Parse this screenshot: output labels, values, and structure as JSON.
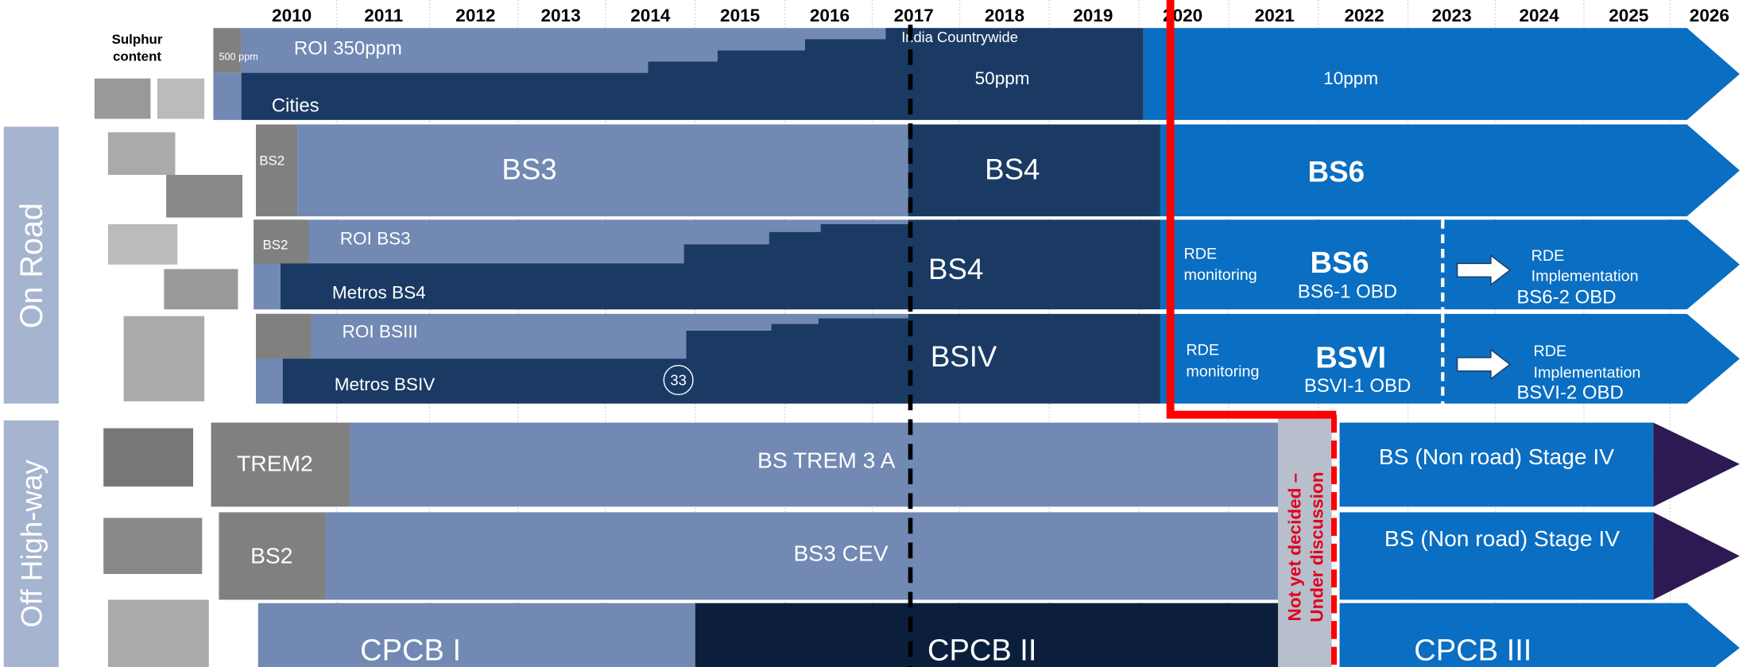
{
  "years": [
    "2010",
    "2011",
    "2012",
    "2013",
    "2014",
    "2015",
    "2016",
    "2017",
    "2018",
    "2019",
    "2020",
    "2021",
    "2022",
    "2023",
    "2024",
    "2025",
    "2026"
  ],
  "sulphur": {
    "label": [
      "Sulphur",
      "content"
    ],
    "s500": "500 ppm",
    "roi": "ROI 350ppm",
    "cities": "Cities",
    "countrywide": "India Countrywide",
    "s50": "50ppm",
    "s10": "10ppm"
  },
  "on_road": {
    "label": "On Road",
    "two_wheeler": {
      "bs2": "BS2",
      "bs3": "BS3",
      "bs4": "BS4",
      "bs6": "BS6"
    },
    "cars": {
      "bs2": "BS2",
      "roi": "ROI BS3",
      "metros": "Metros BS4",
      "bs4": "BS4",
      "rde_mon": [
        "RDE",
        "monitoring"
      ],
      "bs6": "BS6",
      "obd1": "BS6-1 OBD",
      "rde_impl": [
        "RDE",
        "Implementation"
      ],
      "obd2": "BS6-2 OBD"
    },
    "trucks": {
      "roi": "ROI BSIII",
      "metros": "Metros BSIV",
      "page": "33",
      "bs4": "BSIV",
      "rde_mon": [
        "RDE",
        "monitoring"
      ],
      "bs6": "BSVI",
      "obd1": "BSVI-1 OBD",
      "rde_impl": [
        "RDE",
        "Implementation"
      ],
      "obd2": "BSVI-2 OBD"
    }
  },
  "off_highway": {
    "label": "Off High-way",
    "tractor": {
      "old": "TREM2",
      "current": "BS TREM 3 A",
      "next": "BS (Non road) Stage IV"
    },
    "construction": {
      "old": "BS2",
      "current": "BS3 CEV",
      "next": "BS (Non road) Stage IV"
    },
    "genset": {
      "old": "CPCB I",
      "current": "CPCB II",
      "next": "CPCB III"
    },
    "undecided": [
      "Not yet decided –",
      "Under discussion"
    ]
  }
}
